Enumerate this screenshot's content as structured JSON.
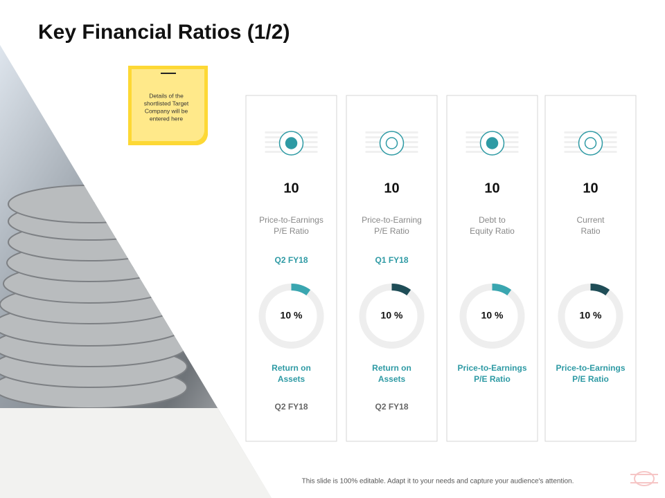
{
  "header": {
    "title": "Key Financial Ratios (1/2)"
  },
  "note": {
    "lines": [
      "Details of the",
      "shortlisted Target",
      "Company will be",
      "entered here"
    ]
  },
  "cards": [
    {
      "value": "10",
      "metric": [
        "Price-to-Earnings",
        "P/E Ratio"
      ],
      "period": "Q2 FY18",
      "ring": {
        "value": 10,
        "label": "10 %",
        "color": "#3aa6b0"
      },
      "ring_metric": [
        "Return on",
        "Assets"
      ],
      "ring_period": "Q2 FY18"
    },
    {
      "value": "10",
      "metric": [
        "Price-to-Earning",
        "P/E Ratio"
      ],
      "period": "Q1 FY18",
      "ring": {
        "value": 10,
        "label": "10 %",
        "color": "#1f4d57"
      },
      "ring_metric": [
        "Return on",
        "Assets"
      ],
      "ring_period": "Q2 FY18"
    },
    {
      "value": "10",
      "metric": [
        "Debt to",
        "Equity Ratio"
      ],
      "ring": {
        "value": 10,
        "label": "10 %",
        "color": "#3aa6b0"
      },
      "ring_metric": [
        "Price-to-Earnings",
        "P/E Ratio"
      ]
    },
    {
      "value": "10",
      "metric": [
        "Current",
        "Ratio"
      ],
      "ring": {
        "value": 10,
        "label": "10 %",
        "color": "#1f4d57"
      },
      "ring_metric": [
        "Price-to-Earnings",
        "P/E Ratio"
      ]
    }
  ],
  "footer": {
    "text": "This slide is 100% editable. Adapt it to your needs and capture your audience's attention."
  }
}
